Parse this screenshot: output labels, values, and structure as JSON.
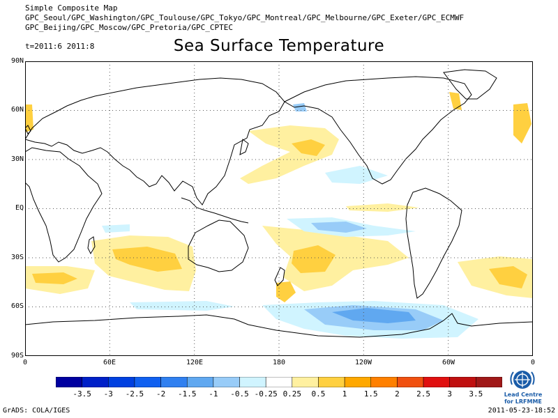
{
  "header": {
    "line1": "Simple Composite Map",
    "line2": "GPC_Seoul/GPC_Washington/GPC_Toulouse/GPC_Tokyo/GPC_Montreal/GPC_Melbourne/GPC_Exeter/GPC_ECMWF",
    "line3": "GPC_Beijing/GPC_Moscow/GPC_Pretoria/GPC_CPTEC",
    "time_range": "t=2011:6 2011:8",
    "title": "Sea Surface Temperature"
  },
  "axes": {
    "lat_labels": [
      "90N",
      "60N",
      "30N",
      "EQ",
      "30S",
      "60S",
      "90S"
    ],
    "lon_labels": [
      "0",
      "60E",
      "120E",
      "180",
      "120W",
      "60W",
      "0"
    ]
  },
  "colorbar": {
    "ticks": [
      "-3.5",
      "-3",
      "-2.5",
      "-2",
      "-1.5",
      "-1",
      "-0.5",
      "-0.25",
      "0.25",
      "0.5",
      "1",
      "1.5",
      "2",
      "2.5",
      "3",
      "3.5"
    ],
    "colors": [
      "#0000a0",
      "#0020c8",
      "#0040e0",
      "#1060f0",
      "#3080f0",
      "#60a8f0",
      "#98ccf8",
      "#d0f4ff",
      "#ffffff",
      "#fff0a0",
      "#ffd040",
      "#ffa800",
      "#ff8000",
      "#f05010",
      "#e01010",
      "#c01010",
      "#a01818"
    ]
  },
  "logo": {
    "line1": "Lead Centre",
    "line2": "for LRFMME"
  },
  "footer": {
    "left": "GrADS: COLA/IGES",
    "right": "2011-05-23-18:52"
  }
}
